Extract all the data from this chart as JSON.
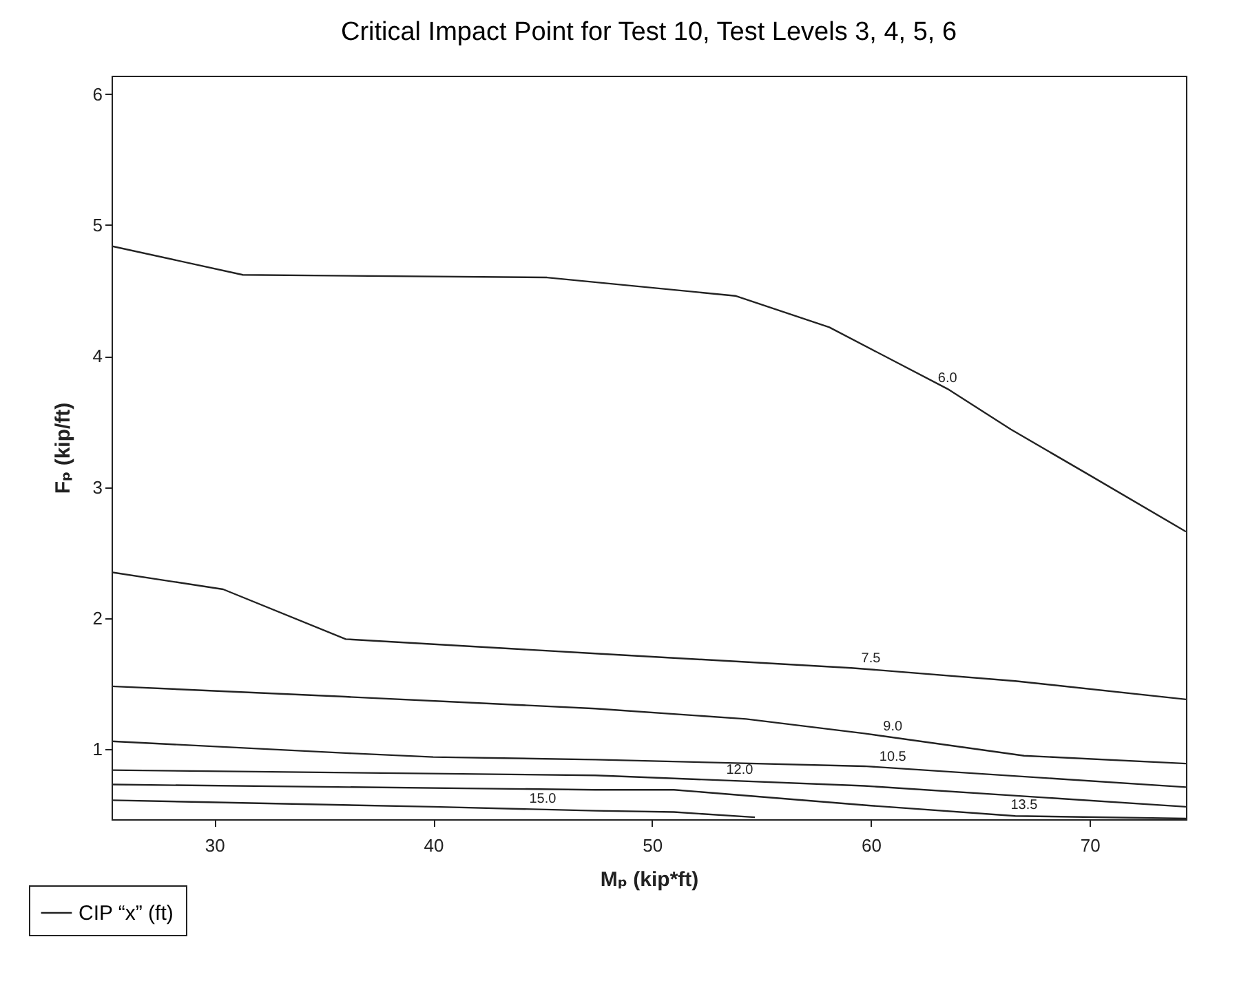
{
  "chart_data": {
    "type": "line",
    "title": "Critical Impact Point for Test 10, Test Levels 3, 4, 5, 6",
    "xlabel": "Mₚ (kip*ft)",
    "ylabel": "Fₚ (kip/ft)",
    "legend": "bottom left",
    "grid": false,
    "line_style": "solid",
    "xlim": [
      25.3,
      74.4
    ],
    "ylim": [
      0.465,
      6.14
    ],
    "xticks": [
      30,
      40,
      50,
      60,
      70
    ],
    "yticks": [
      1,
      2,
      3,
      4,
      5,
      6
    ],
    "annotations": [
      {
        "text": "6.0",
        "x": 63.5,
        "y": 3.75
      },
      {
        "text": "7.5",
        "x": 60,
        "y": 1.61
      },
      {
        "text": "9.0",
        "x": 61,
        "y": 1.09
      },
      {
        "text": "10.5",
        "x": 61,
        "y": 0.86
      },
      {
        "text": "12.0",
        "x": 54,
        "y": 0.76
      },
      {
        "text": "13.5",
        "x": 67,
        "y": 0.49
      },
      {
        "text": "15.0",
        "x": 45,
        "y": 0.54
      }
    ],
    "series": [
      {
        "name": "CIP “x” (ft)",
        "color": "#222222",
        "x": [
          25.3,
          31.3,
          45.2,
          53.8,
          58.1,
          63.5,
          66.4,
          69.8,
          74.4,
          null,
          25.3,
          30.4,
          36.0,
          47.4,
          59.1,
          66.6,
          74.4,
          null,
          25.3,
          36.0,
          47.4,
          54.3,
          59.7,
          67.0,
          74.4,
          null,
          25.3,
          36.0,
          40,
          47.4,
          59.7,
          74.4,
          null,
          25.3,
          47.4,
          59.7,
          74.4,
          null,
          25.3,
          47.4,
          51.0,
          59.9,
          66.6,
          74.4,
          null,
          25.3,
          40,
          47.4,
          51.0,
          54.7
        ],
        "values": [
          4.84,
          4.62,
          4.6,
          4.46,
          4.22,
          3.75,
          3.44,
          3.11,
          2.66,
          null,
          2.35,
          2.22,
          1.84,
          1.73,
          1.62,
          1.52,
          1.38,
          null,
          1.48,
          1.4,
          1.31,
          1.23,
          1.12,
          0.95,
          0.89,
          null,
          1.06,
          0.97,
          0.94,
          0.92,
          0.87,
          0.71,
          null,
          0.84,
          0.8,
          0.72,
          0.56,
          null,
          0.73,
          0.69,
          0.69,
          0.57,
          0.49,
          0.47,
          null,
          0.61,
          0.56,
          0.53,
          0.52,
          0.48
        ]
      }
    ]
  }
}
